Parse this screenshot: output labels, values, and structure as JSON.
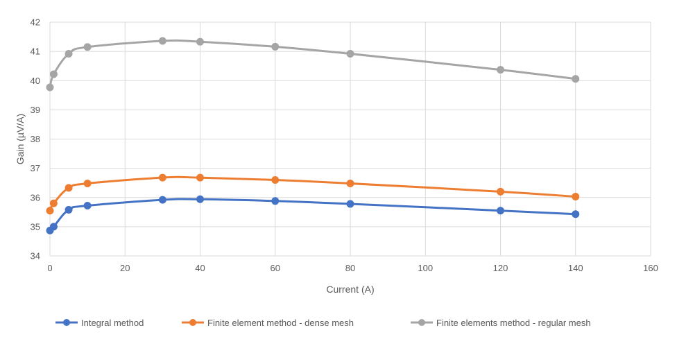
{
  "chart_data": {
    "type": "line",
    "title": "",
    "xlabel": "Current (A)",
    "ylabel": "Gain (µV/A)",
    "xlim": [
      0,
      160
    ],
    "ylim": [
      34,
      42
    ],
    "x_ticks": [
      0,
      20,
      40,
      60,
      80,
      100,
      120,
      140,
      160
    ],
    "y_ticks": [
      34,
      35,
      36,
      37,
      38,
      39,
      40,
      41,
      42
    ],
    "grid": true,
    "legend_position": "bottom",
    "series": [
      {
        "name": "Integral method",
        "color": "#4472C4",
        "points": [
          [
            0,
            34.87
          ],
          [
            1,
            35.0
          ],
          [
            5,
            35.58
          ],
          [
            10,
            35.72
          ],
          [
            30,
            35.92
          ],
          [
            40,
            35.94
          ],
          [
            60,
            35.88
          ],
          [
            80,
            35.78
          ],
          [
            120,
            35.55
          ],
          [
            140,
            35.43
          ]
        ]
      },
      {
        "name": "Finite element method   - dense mesh",
        "color": "#ED7D31",
        "points": [
          [
            0,
            35.55
          ],
          [
            1,
            35.8
          ],
          [
            5,
            36.33
          ],
          [
            10,
            36.48
          ],
          [
            30,
            36.68
          ],
          [
            40,
            36.68
          ],
          [
            60,
            36.6
          ],
          [
            80,
            36.48
          ],
          [
            120,
            36.2
          ],
          [
            140,
            36.03
          ]
        ]
      },
      {
        "name": "Finite elements method - regular mesh",
        "color": "#A5A5A5",
        "points": [
          [
            0,
            39.77
          ],
          [
            1,
            40.22
          ],
          [
            5,
            40.92
          ],
          [
            10,
            41.15
          ],
          [
            30,
            41.36
          ],
          [
            40,
            41.33
          ],
          [
            60,
            41.16
          ],
          [
            80,
            40.92
          ],
          [
            120,
            40.37
          ],
          [
            140,
            40.06
          ]
        ]
      }
    ]
  }
}
